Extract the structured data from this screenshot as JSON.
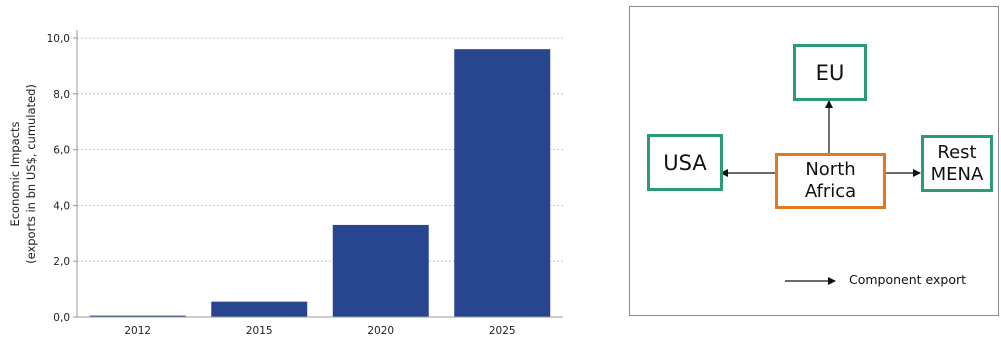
{
  "chart_data": {
    "type": "bar",
    "categories": [
      "2012",
      "2015",
      "2020",
      "2025"
    ],
    "values": [
      0.05,
      0.55,
      3.3,
      9.6
    ],
    "ylabel_line1": "Economic Impacts",
    "ylabel_line2": "(exports in bn US$, cumulated)",
    "ylim": [
      0,
      10
    ],
    "yticks": [
      "0,0",
      "2,0",
      "4,0",
      "6,0",
      "8,0",
      "10,0"
    ],
    "ytick_values": [
      0,
      2,
      4,
      6,
      8,
      10
    ],
    "grid": true,
    "bar_color": "#27468f"
  },
  "diagram": {
    "nodes": {
      "eu": "EU",
      "usa": "USA",
      "north_africa": "North\nAfrica",
      "rest_mena": "Rest\nMENA"
    },
    "legend_label": "Component export",
    "colors": {
      "green": "#2a9a7a",
      "orange": "#e07a22"
    }
  }
}
